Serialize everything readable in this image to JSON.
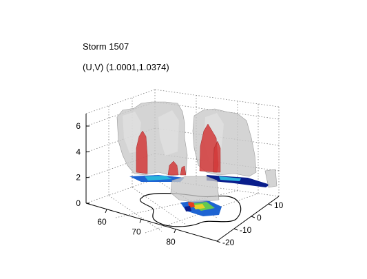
{
  "chart_data": {
    "type": "3d-isosurface",
    "title": "Storm 1507",
    "subtitle": "(U,V) (1.0001,1.0374)",
    "axes": {
      "x": {
        "ticks": [
          60,
          70,
          80
        ]
      },
      "y": {
        "ticks": [
          -20,
          -10,
          0,
          10
        ]
      },
      "z": {
        "ticks": [
          0,
          2,
          4,
          6
        ]
      }
    },
    "grid": true,
    "surfaces": [
      {
        "name": "outer",
        "color": "#c8c8c8"
      },
      {
        "name": "core",
        "color": "#d23a3a"
      }
    ],
    "floor_colormap": [
      "#0a1e8c",
      "#1e64d2",
      "#28b4dc",
      "#64c850",
      "#e6d228",
      "#e63c1e"
    ],
    "outline_color": "#000000"
  }
}
